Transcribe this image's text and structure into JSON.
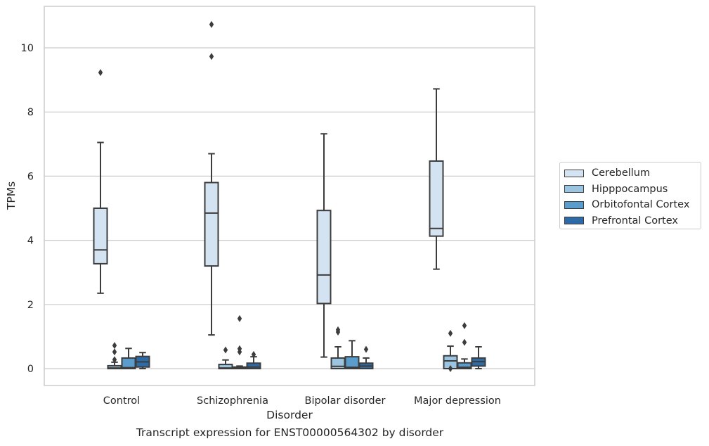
{
  "chart_data": {
    "type": "box",
    "title": "Transcript expression for ENST00000564302 by disorder",
    "xlabel": "Disorder",
    "ylabel": "TPMs",
    "ylim": [
      -0.5,
      11.3
    ],
    "yticks": [
      0,
      2,
      4,
      6,
      8,
      10
    ],
    "grid": true,
    "legend_placement": "right",
    "categories": [
      "Control",
      "Schizophrenia",
      "Bipolar disorder",
      "Major depression"
    ],
    "series": [
      {
        "name": "Cerebellum",
        "color": "#d4e3f1",
        "boxes": [
          {
            "whisker_low": 2.35,
            "q1": 3.27,
            "median": 3.7,
            "q3": 5.0,
            "whisker_high": 7.05,
            "outliers": [
              9.23
            ]
          },
          {
            "whisker_low": 1.05,
            "q1": 3.2,
            "median": 4.85,
            "q3": 5.8,
            "whisker_high": 6.7,
            "outliers": [
              9.73,
              10.73
            ]
          },
          {
            "whisker_low": 0.36,
            "q1": 2.03,
            "median": 2.92,
            "q3": 4.93,
            "whisker_high": 7.32,
            "outliers": []
          },
          {
            "whisker_low": 3.1,
            "q1": 4.13,
            "median": 4.37,
            "q3": 6.47,
            "whisker_high": 8.72,
            "outliers": []
          }
        ]
      },
      {
        "name": "Hipppocampus",
        "color": "#9ac4e0",
        "boxes": [
          {
            "whisker_low": 0.0,
            "q1": 0.0,
            "median": 0.02,
            "q3": 0.09,
            "whisker_high": 0.2,
            "outliers": [
              0.28,
              0.52,
              0.72
            ]
          },
          {
            "whisker_low": 0.0,
            "q1": 0.0,
            "median": 0.02,
            "q3": 0.13,
            "whisker_high": 0.27,
            "outliers": [
              0.58
            ]
          },
          {
            "whisker_low": 0.0,
            "q1": 0.0,
            "median": 0.07,
            "q3": 0.33,
            "whisker_high": 0.68,
            "outliers": [
              1.14,
              1.21
            ]
          },
          {
            "whisker_low": 0.0,
            "q1": 0.0,
            "median": 0.24,
            "q3": 0.4,
            "whisker_high": 0.7,
            "outliers": [
              0.0,
              1.1
            ]
          }
        ]
      },
      {
        "name": "Orbitofontal Cortex",
        "color": "#5a9ccb",
        "boxes": [
          {
            "whisker_low": 0.0,
            "q1": 0.0,
            "median": 0.03,
            "q3": 0.33,
            "whisker_high": 0.63,
            "outliers": []
          },
          {
            "whisker_low": 0.0,
            "q1": 0.0,
            "median": 0.01,
            "q3": 0.05,
            "whisker_high": 0.08,
            "outliers": [
              0.52,
              0.62,
              1.56
            ]
          },
          {
            "whisker_low": 0.0,
            "q1": 0.0,
            "median": 0.04,
            "q3": 0.37,
            "whisker_high": 0.87,
            "outliers": []
          },
          {
            "whisker_low": 0.0,
            "q1": 0.0,
            "median": 0.04,
            "q3": 0.18,
            "whisker_high": 0.3,
            "outliers": [
              0.82,
              1.34
            ]
          }
        ]
      },
      {
        "name": "Prefrontal Cortex",
        "color": "#2c6ba8",
        "boxes": [
          {
            "whisker_low": 0.0,
            "q1": 0.05,
            "median": 0.21,
            "q3": 0.38,
            "whisker_high": 0.5,
            "outliers": []
          },
          {
            "whisker_low": 0.0,
            "q1": 0.0,
            "median": 0.05,
            "q3": 0.17,
            "whisker_high": 0.37,
            "outliers": [
              0.44
            ]
          },
          {
            "whisker_low": 0.0,
            "q1": 0.0,
            "median": 0.08,
            "q3": 0.17,
            "whisker_high": 0.33,
            "outliers": [
              0.6
            ]
          },
          {
            "whisker_low": 0.0,
            "q1": 0.08,
            "median": 0.22,
            "q3": 0.33,
            "whisker_high": 0.68,
            "outliers": []
          }
        ]
      }
    ]
  }
}
